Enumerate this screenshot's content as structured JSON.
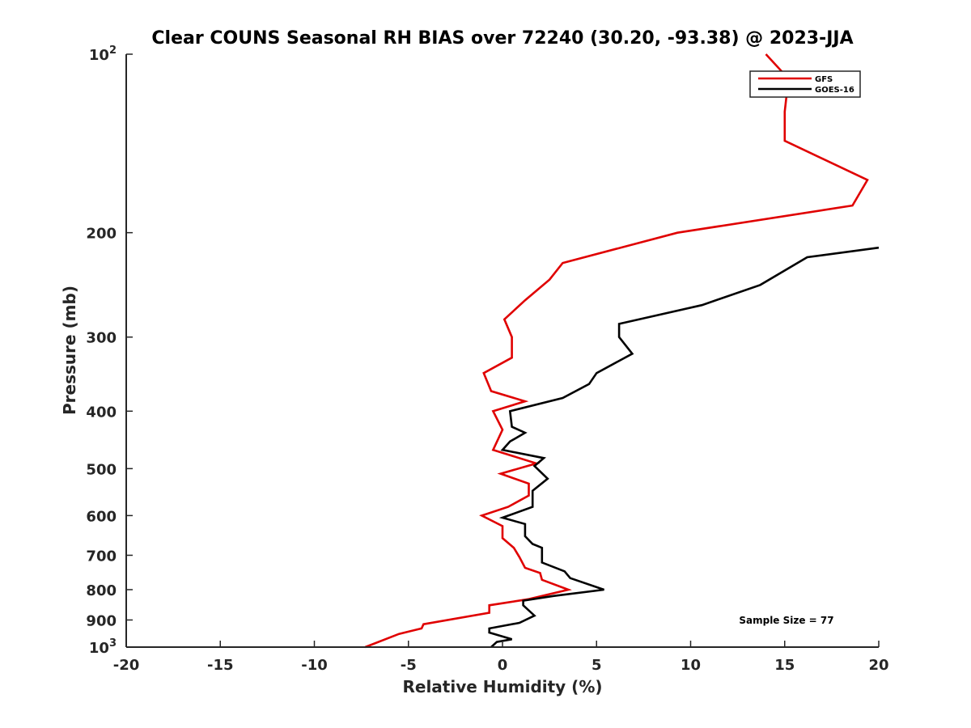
{
  "chart_data": {
    "type": "line",
    "title": "Clear COUNS Seasonal RH BIAS over 72240 (30.20, -93.38) @ 2023-JJA",
    "xlabel": "Relative Humidity (%)",
    "ylabel": "Pressure (mb)",
    "xlim": [
      -20,
      20
    ],
    "ylim": [
      100,
      1000
    ],
    "y_scale": "log",
    "y_reversed": true,
    "grid": false,
    "legend_position": "top-right",
    "x_ticks": [
      "-20",
      "-15",
      "-10",
      "-5",
      "0",
      "5",
      "10",
      "15",
      "20"
    ],
    "y_ticks": [
      {
        "value": 100,
        "base": "10",
        "sup": "2"
      },
      {
        "value": 200,
        "base": "200",
        "sup": ""
      },
      {
        "value": 300,
        "base": "300",
        "sup": ""
      },
      {
        "value": 400,
        "base": "400",
        "sup": ""
      },
      {
        "value": 500,
        "base": "500",
        "sup": ""
      },
      {
        "value": 600,
        "base": "600",
        "sup": ""
      },
      {
        "value": 700,
        "base": "700",
        "sup": ""
      },
      {
        "value": 800,
        "base": "800",
        "sup": ""
      },
      {
        "value": 900,
        "base": "900",
        "sup": ""
      },
      {
        "value": 1000,
        "base": "10",
        "sup": "3"
      }
    ],
    "annotation": "Sample Size = 77",
    "series": [
      {
        "name": "GFS",
        "color": "#e00000",
        "points": [
          [
            14.0,
            100
          ],
          [
            15.2,
            110
          ],
          [
            15.0,
            125
          ],
          [
            15.0,
            140
          ],
          [
            19.4,
            163
          ],
          [
            18.6,
            180
          ],
          [
            9.3,
            200
          ],
          [
            3.2,
            225
          ],
          [
            2.5,
            240
          ],
          [
            1.2,
            260
          ],
          [
            0.1,
            280
          ],
          [
            0.5,
            300
          ],
          [
            0.5,
            325
          ],
          [
            -1.0,
            345
          ],
          [
            -0.6,
            370
          ],
          [
            1.2,
            385
          ],
          [
            -0.5,
            400
          ],
          [
            0.0,
            430
          ],
          [
            -0.5,
            465
          ],
          [
            1.8,
            490
          ],
          [
            -0.1,
            510
          ],
          [
            1.4,
            530
          ],
          [
            1.4,
            555
          ],
          [
            0.3,
            580
          ],
          [
            -1.1,
            600
          ],
          [
            0.0,
            625
          ],
          [
            0.0,
            655
          ],
          [
            0.6,
            680
          ],
          [
            0.9,
            705
          ],
          [
            1.2,
            735
          ],
          [
            2.0,
            750
          ],
          [
            2.1,
            770
          ],
          [
            3.5,
            800
          ],
          [
            1.4,
            830
          ],
          [
            -0.7,
            850
          ],
          [
            -0.7,
            875
          ],
          [
            -4.2,
            915
          ],
          [
            -4.3,
            930
          ],
          [
            -5.5,
            950
          ],
          [
            -7.3,
            1000
          ]
        ]
      },
      {
        "name": "GOES-16",
        "color": "#000000",
        "points": [
          [
            20.0,
            212
          ],
          [
            16.2,
            220
          ],
          [
            13.7,
            245
          ],
          [
            10.6,
            265
          ],
          [
            6.2,
            285
          ],
          [
            6.2,
            300
          ],
          [
            6.9,
            320
          ],
          [
            5.0,
            345
          ],
          [
            4.6,
            360
          ],
          [
            3.2,
            380
          ],
          [
            0.4,
            400
          ],
          [
            0.5,
            425
          ],
          [
            1.2,
            435
          ],
          [
            0.4,
            450
          ],
          [
            0.0,
            465
          ],
          [
            2.2,
            480
          ],
          [
            1.7,
            495
          ],
          [
            2.4,
            520
          ],
          [
            1.6,
            545
          ],
          [
            1.6,
            580
          ],
          [
            0.0,
            605
          ],
          [
            1.2,
            620
          ],
          [
            1.2,
            650
          ],
          [
            1.6,
            670
          ],
          [
            2.1,
            680
          ],
          [
            2.1,
            720
          ],
          [
            3.3,
            745
          ],
          [
            3.6,
            765
          ],
          [
            5.4,
            800
          ],
          [
            2.7,
            820
          ],
          [
            1.1,
            835
          ],
          [
            1.1,
            850
          ],
          [
            1.7,
            885
          ],
          [
            0.9,
            910
          ],
          [
            -0.7,
            930
          ],
          [
            -0.7,
            945
          ],
          [
            0.5,
            970
          ],
          [
            -0.3,
            980
          ],
          [
            -0.6,
            1000
          ]
        ]
      }
    ]
  }
}
